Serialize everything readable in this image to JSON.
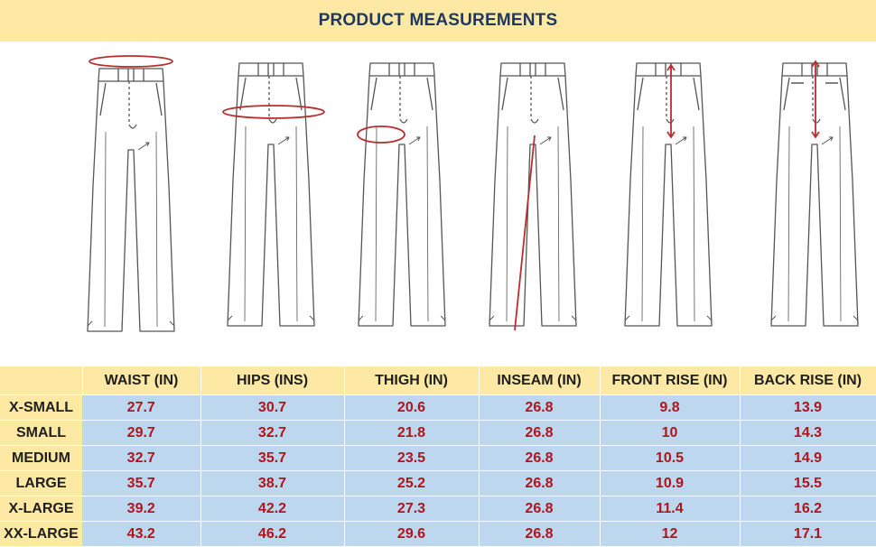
{
  "title": "PRODUCT MEASUREMENTS",
  "colors": {
    "header_bg": "#fde9a4",
    "cell_bg": "#bdd7ee",
    "value_text": "#b0151d",
    "marker": "#b5302e"
  },
  "figures": [
    {
      "name": "waist",
      "marker": "ellipse-above-waistband"
    },
    {
      "name": "hips",
      "marker": "ellipse-at-hips"
    },
    {
      "name": "thigh",
      "marker": "ellipse-at-thigh"
    },
    {
      "name": "inseam",
      "marker": "line-crotch-to-hem"
    },
    {
      "name": "front-rise",
      "marker": "arrow-waist-to-crotch-front"
    },
    {
      "name": "back-rise",
      "marker": "arrow-waist-to-crotch-back"
    }
  ],
  "table": {
    "headers": [
      "",
      "WAIST (IN)",
      "HIPS (INS)",
      "THIGH (IN)",
      "INSEAM (IN)",
      "FRONT RISE (IN)",
      "BACK RISE (IN)"
    ],
    "rows": [
      {
        "size": "X-SMALL",
        "values": [
          "27.7",
          "30.7",
          "20.6",
          "26.8",
          "9.8",
          "13.9"
        ]
      },
      {
        "size": "SMALL",
        "values": [
          "29.7",
          "32.7",
          "21.8",
          "26.8",
          "10",
          "14.3"
        ]
      },
      {
        "size": "MEDIUM",
        "values": [
          "32.7",
          "35.7",
          "23.5",
          "26.8",
          "10.5",
          "14.9"
        ]
      },
      {
        "size": "LARGE",
        "values": [
          "35.7",
          "38.7",
          "25.2",
          "26.8",
          "10.9",
          "15.5"
        ]
      },
      {
        "size": "X-LARGE",
        "values": [
          "39.2",
          "42.2",
          "27.3",
          "26.8",
          "11.4",
          "16.2"
        ]
      },
      {
        "size": "XX-LARGE",
        "values": [
          "43.2",
          "46.2",
          "29.6",
          "26.8",
          "12",
          "17.1"
        ]
      }
    ]
  }
}
